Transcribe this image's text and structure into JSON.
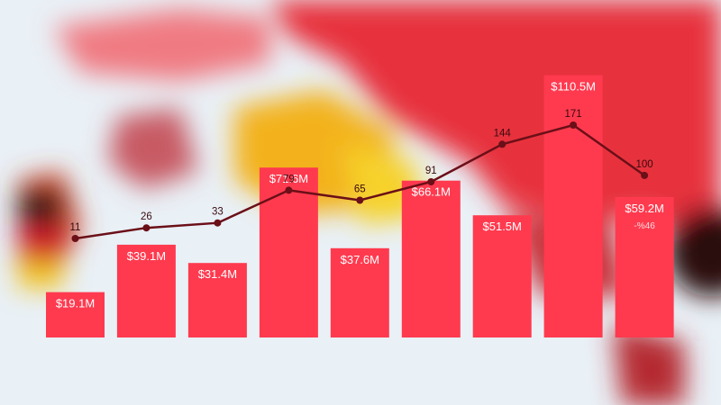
{
  "chart_data": {
    "type": "bar",
    "categories": [
      "",
      "",
      "",
      "",
      "",
      "",
      "",
      "",
      ""
    ],
    "series": [
      {
        "type": "bar",
        "values": [
          19.1,
          39.1,
          31.4,
          71.6,
          37.6,
          66.1,
          51.5,
          110.5,
          59.2
        ],
        "labels": [
          "$19.1M",
          "$39.1M",
          "$31.4M",
          "$71.6M",
          "$37.6M",
          "$66.1M",
          "$51.5M",
          "$110.5M",
          "$59.2M"
        ],
        "color": "#ff3a4f"
      },
      {
        "type": "line",
        "values": [
          11,
          26,
          33,
          79,
          65,
          91,
          144,
          171,
          100
        ],
        "color": "#6b0f18"
      }
    ],
    "annotations": [
      {
        "category_index": 8,
        "text": "-%46"
      }
    ],
    "title": "",
    "xlabel": "",
    "ylabel": "",
    "grid": false,
    "legend": "none"
  },
  "colors": {
    "bar": "#ff3a4f",
    "line": "#6b0f18",
    "background_light": "#eef3f8",
    "background_map": "#e8323e"
  }
}
